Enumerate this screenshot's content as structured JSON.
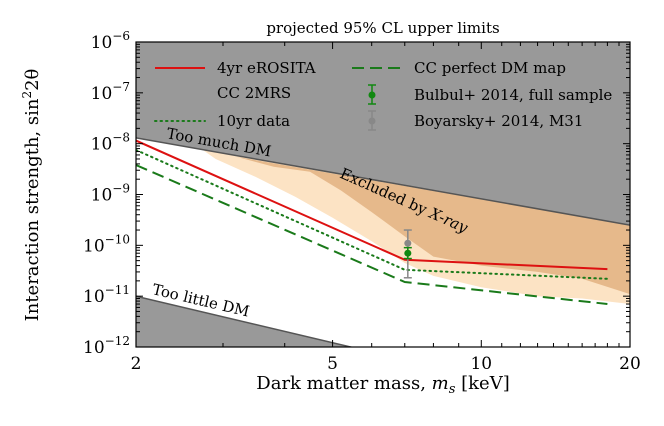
{
  "chart_data": {
    "type": "line",
    "title": "projected 95% CL upper limits",
    "xlabel": "Dark matter mass, m_s [keV]",
    "xlabel_main": "Dark matter mass, ",
    "xlabel_var": "m",
    "xlabel_sub": "s",
    "xlabel_unit": " [keV]",
    "ylabel": "Interaction strength, sin²2θ",
    "ylabel_main": "Interaction strength, sin",
    "ylabel_sup": "2",
    "ylabel_tail": "2θ",
    "xscale": "log",
    "yscale": "log",
    "xlim": [
      2,
      20
    ],
    "ylim": [
      1e-12,
      1e-06
    ],
    "xticks": [
      {
        "value": 2,
        "label": "2"
      },
      {
        "value": 5,
        "label": "5"
      },
      {
        "value": 10,
        "label": "10"
      },
      {
        "value": 20,
        "label": "20"
      }
    ],
    "yticks": [
      {
        "value": 1e-12,
        "base": "10",
        "exp": "−12"
      },
      {
        "value": 1e-11,
        "base": "10",
        "exp": "−11"
      },
      {
        "value": 1e-10,
        "base": "10",
        "exp": "−10"
      },
      {
        "value": 1e-09,
        "base": "10",
        "exp": "−9"
      },
      {
        "value": 1e-08,
        "base": "10",
        "exp": "−8"
      },
      {
        "value": 1e-07,
        "base": "10",
        "exp": "−7"
      },
      {
        "value": 1e-06,
        "base": "10",
        "exp": "−6"
      }
    ],
    "regions": [
      {
        "name": "too-much-dm",
        "label": "Too much DM",
        "color": "#999999",
        "boundary": [
          [
            2,
            1.3e-08
          ],
          [
            20,
            2.5e-10
          ]
        ],
        "fill": "above"
      },
      {
        "name": "too-little-dm",
        "label": "Too little DM",
        "color": "#999999",
        "boundary": [
          [
            2,
            1e-11
          ],
          [
            20,
            5e-14
          ]
        ],
        "fill": "below"
      },
      {
        "name": "xray-light",
        "label": "",
        "color": "#fce3c4",
        "polygon": [
          [
            2.6,
            1.05e-08
          ],
          [
            2.9,
            5e-09
          ],
          [
            3.5,
            2.2e-09
          ],
          [
            4.2,
            9e-10
          ],
          [
            5,
            3.5e-10
          ],
          [
            6,
            1.2e-10
          ],
          [
            7,
            4.5e-11
          ],
          [
            8,
            2.5e-11
          ],
          [
            10,
            1.5e-11
          ],
          [
            13,
            1e-11
          ],
          [
            16,
            9e-12
          ],
          [
            20,
            7e-12
          ],
          [
            20,
            2.5e-10
          ],
          [
            2,
            1.3e-08
          ]
        ]
      },
      {
        "name": "xray-dark",
        "label": "Excluded by X-ray",
        "color": "#e6b98b",
        "polygon": [
          [
            3.2,
            5.5e-09
          ],
          [
            3.8,
            3.5e-09
          ],
          [
            4.5,
            2.8e-09
          ],
          [
            5.2,
            1.2e-09
          ],
          [
            6,
            4.5e-10
          ],
          [
            7,
            1.5e-10
          ],
          [
            8,
            6e-11
          ],
          [
            10,
            4e-11
          ],
          [
            13,
            3e-11
          ],
          [
            16,
            2.2e-11
          ],
          [
            20,
            1.1e-11
          ],
          [
            20,
            2.5e-10
          ]
        ]
      }
    ],
    "series": [
      {
        "name": "4yr eROSITA",
        "color": "#dd1111",
        "style": "solid",
        "x": [
          2,
          7,
          18
        ],
        "y": [
          1.15e-08,
          5.2e-11,
          3.4e-11
        ]
      },
      {
        "name": "CC perfect DM map",
        "color": "#1a7a1a",
        "style": "dashed",
        "x": [
          2,
          7,
          18
        ],
        "y": [
          3.8e-09,
          1.9e-11,
          7e-12
        ]
      },
      {
        "name": "CC 2MRS 10yr data",
        "color": "#1a7a1a",
        "style": "dotted",
        "x": [
          2,
          7,
          18
        ],
        "y": [
          7.5e-09,
          3.3e-11,
          2.2e-11
        ]
      }
    ],
    "points": [
      {
        "name": "Bulbul+ 2014, full sample",
        "color": "#118811",
        "x": 7.1,
        "y": 7e-11,
        "yerr_low": 5.5e-11,
        "yerr_high": 9e-11
      },
      {
        "name": "Boyarsky+ 2014, M31",
        "color": "#888888",
        "x": 7.1,
        "y": 1.1e-10,
        "yerr_low": 2.3e-11,
        "yerr_high": 2e-10
      }
    ],
    "legend": {
      "position": "top",
      "entries": {
        "erosita": "4yr eROSITA",
        "cc2mrs_line1": "CC 2MRS",
        "cc2mrs_line2": "10yr data",
        "ccperfect": "CC perfect DM map",
        "bulbul": "Bulbul+ 2014, full sample",
        "boyarsky": "Boyarsky+ 2014, M31"
      }
    },
    "annotations": {
      "too_much": "Too much DM",
      "too_little": "Too little DM",
      "xray": "Excluded by X-ray",
      "xray_main": "Excluded by ",
      "xray_tail": "X-ray"
    }
  }
}
